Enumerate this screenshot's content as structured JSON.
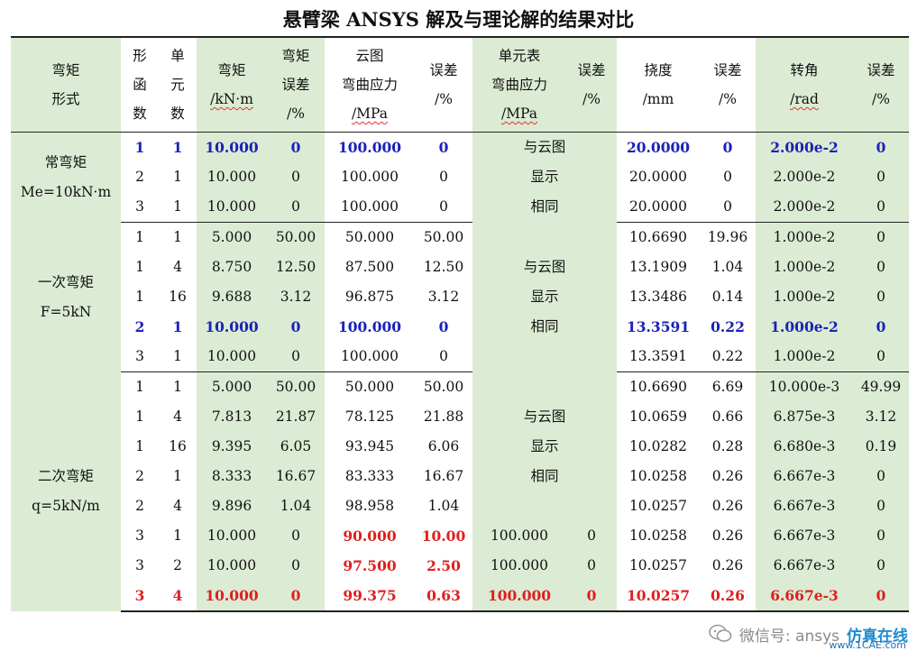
{
  "title": "悬臂梁 ANSYS 解及与理论解的结果对比",
  "headers": {
    "moment_type": [
      "弯矩",
      "形式"
    ],
    "shape_fn": [
      "形",
      "函",
      "数"
    ],
    "elements": [
      "单",
      "元",
      "数"
    ],
    "moment": [
      "弯矩",
      "/kN·m"
    ],
    "moment_err": [
      "弯矩",
      "误差",
      "/%"
    ],
    "contour_stress": [
      "云图",
      "弯曲应力",
      "/MPa"
    ],
    "contour_err": [
      "误差",
      "/%"
    ],
    "table_stress": [
      "单元表",
      "弯曲应力",
      "/MPa"
    ],
    "table_err": [
      "误差",
      "/%"
    ],
    "deflection": [
      "挠度",
      "/mm"
    ],
    "deflection_err": [
      "误差",
      "/%"
    ],
    "rotation": [
      "转角",
      "/rad"
    ],
    "rotation_err": [
      "误差",
      "/%"
    ]
  },
  "sections": [
    {
      "label": [
        "常弯矩",
        "Me=10kN·m"
      ],
      "table_note": [
        "与云图",
        "显示",
        "相同"
      ],
      "rows": [
        {
          "shape": "1",
          "elem": "1",
          "moment": "10.000",
          "merr": "0",
          "stress": "100.000",
          "serr": "0",
          "defl": "20.0000",
          "derr": "0",
          "rot": "2.000e-2",
          "rerr": "0"
        },
        {
          "shape": "2",
          "elem": "1",
          "moment": "10.000",
          "merr": "0",
          "stress": "100.000",
          "serr": "0",
          "defl": "20.0000",
          "derr": "0",
          "rot": "2.000e-2",
          "rerr": "0"
        },
        {
          "shape": "3",
          "elem": "1",
          "moment": "10.000",
          "merr": "0",
          "stress": "100.000",
          "serr": "0",
          "defl": "20.0000",
          "derr": "0",
          "rot": "2.000e-2",
          "rerr": "0"
        }
      ]
    },
    {
      "label": [
        "一次弯矩",
        "F=5kN"
      ],
      "table_note": [
        "与云图",
        "显示",
        "相同"
      ],
      "rows": [
        {
          "shape": "1",
          "elem": "1",
          "moment": "5.000",
          "merr": "50.00",
          "stress": "50.000",
          "serr": "50.00",
          "defl": "10.6690",
          "derr": "19.96",
          "rot": "1.000e-2",
          "rerr": "0"
        },
        {
          "shape": "1",
          "elem": "4",
          "moment": "8.750",
          "merr": "12.50",
          "stress": "87.500",
          "serr": "12.50",
          "defl": "13.1909",
          "derr": "1.04",
          "rot": "1.000e-2",
          "rerr": "0"
        },
        {
          "shape": "1",
          "elem": "16",
          "moment": "9.688",
          "merr": "3.12",
          "stress": "96.875",
          "serr": "3.12",
          "defl": "13.3486",
          "derr": "0.14",
          "rot": "1.000e-2",
          "rerr": "0"
        },
        {
          "shape": "2",
          "elem": "1",
          "moment": "10.000",
          "merr": "0",
          "stress": "100.000",
          "serr": "0",
          "defl": "13.3591",
          "derr": "0.22",
          "rot": "1.000e-2",
          "rerr": "0"
        },
        {
          "shape": "3",
          "elem": "1",
          "moment": "10.000",
          "merr": "0",
          "stress": "100.000",
          "serr": "0",
          "defl": "13.3591",
          "derr": "0.22",
          "rot": "1.000e-2",
          "rerr": "0"
        }
      ]
    },
    {
      "label": [
        "二次弯矩",
        "q=5kN/m"
      ],
      "table_note": [
        "与云图",
        "显示",
        "相同"
      ],
      "rows": [
        {
          "shape": "1",
          "elem": "1",
          "moment": "5.000",
          "merr": "50.00",
          "stress": "50.000",
          "serr": "50.00",
          "defl": "10.6690",
          "derr": "6.69",
          "rot": "10.000e-3",
          "rerr": "49.99"
        },
        {
          "shape": "1",
          "elem": "4",
          "moment": "7.813",
          "merr": "21.87",
          "stress": "78.125",
          "serr": "21.88",
          "defl": "10.0659",
          "derr": "0.66",
          "rot": "6.875e-3",
          "rerr": "3.12"
        },
        {
          "shape": "1",
          "elem": "16",
          "moment": "9.395",
          "merr": "6.05",
          "stress": "93.945",
          "serr": "6.06",
          "defl": "10.0282",
          "derr": "0.28",
          "rot": "6.680e-3",
          "rerr": "0.19"
        },
        {
          "shape": "2",
          "elem": "1",
          "moment": "8.333",
          "merr": "16.67",
          "stress": "83.333",
          "serr": "16.67",
          "defl": "10.0258",
          "derr": "0.26",
          "rot": "6.667e-3",
          "rerr": "0"
        },
        {
          "shape": "2",
          "elem": "4",
          "moment": "9.896",
          "merr": "1.04",
          "stress": "98.958",
          "serr": "1.04",
          "defl": "10.0257",
          "derr": "0.26",
          "rot": "6.667e-3",
          "rerr": "0"
        },
        {
          "shape": "3",
          "elem": "1",
          "moment": "10.000",
          "merr": "0",
          "stress": "90.000",
          "serr": "10.00",
          "tstress": "100.000",
          "terr": "0",
          "defl": "10.0258",
          "derr": "0.26",
          "rot": "6.667e-3",
          "rerr": "0"
        },
        {
          "shape": "3",
          "elem": "2",
          "moment": "10.000",
          "merr": "0",
          "stress": "97.500",
          "serr": "2.50",
          "tstress": "100.000",
          "terr": "0",
          "defl": "10.0257",
          "derr": "0.26",
          "rot": "6.667e-3",
          "rerr": "0"
        },
        {
          "shape": "3",
          "elem": "4",
          "moment": "10.000",
          "merr": "0",
          "stress": "99.375",
          "serr": "0.63",
          "tstress": "100.000",
          "terr": "0",
          "defl": "10.0257",
          "derr": "0.26",
          "rot": "6.667e-3",
          "rerr": "0"
        }
      ]
    }
  ],
  "watermark": {
    "text": "微信号: ansys",
    "brand": "仿真在线",
    "url": "www.1CAE.com",
    "icon": "wechat-icon"
  },
  "colors": {
    "highlight_blue": "#1a22b8",
    "highlight_red": "#e01e1e",
    "column_green": "#dcebd3"
  }
}
